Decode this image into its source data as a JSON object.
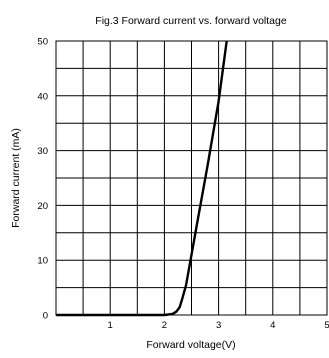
{
  "chart_data": {
    "type": "line",
    "title": "Fig.3 Forward current vs. forward voltage",
    "xlabel": "Forward voltage(V)",
    "ylabel": "Forward current (mA)",
    "xlim": [
      0,
      5
    ],
    "ylim": [
      0,
      50
    ],
    "x_ticks": [
      1,
      2,
      3,
      4,
      5
    ],
    "y_ticks": [
      0,
      10,
      20,
      30,
      40,
      50
    ],
    "grid": true,
    "series": [
      {
        "x": [
          0.0,
          1.0,
          2.0,
          2.15,
          2.22,
          2.28,
          2.33,
          2.4,
          2.6,
          2.8,
          3.0,
          3.15
        ],
        "y": [
          0.0,
          0.0,
          0.0,
          0.2,
          0.6,
          1.4,
          3.0,
          5.5,
          16.5,
          27.5,
          39.0,
          50.0
        ]
      }
    ]
  }
}
